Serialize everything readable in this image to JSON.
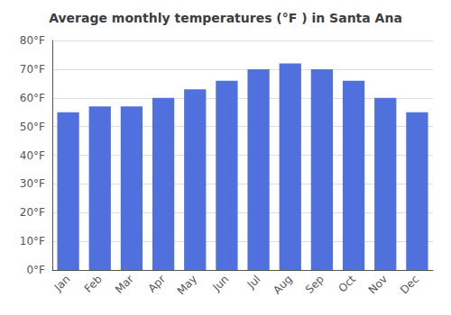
{
  "chart_data": {
    "type": "bar",
    "title": "Average monthly temperatures (°F ) in Santa Ana",
    "categories": [
      "Jan",
      "Feb",
      "Mar",
      "Apr",
      "May",
      "Jun",
      "Jul",
      "Aug",
      "Sep",
      "Oct",
      "Nov",
      "Dec"
    ],
    "values": [
      55,
      57,
      57,
      60,
      63,
      66,
      70,
      72,
      70,
      66,
      60,
      55
    ],
    "ylim": [
      0,
      80
    ],
    "yticks": [
      {
        "value": 0,
        "label": "0°F"
      },
      {
        "value": 10,
        "label": "10°F"
      },
      {
        "value": 20,
        "label": "20°F"
      },
      {
        "value": 30,
        "label": "30°F"
      },
      {
        "value": 40,
        "label": "40°F"
      },
      {
        "value": 50,
        "label": "50°F"
      },
      {
        "value": 60,
        "label": "60°F"
      },
      {
        "value": 70,
        "label": "70°F"
      },
      {
        "value": 80,
        "label": "80°F"
      }
    ],
    "grid": true
  }
}
